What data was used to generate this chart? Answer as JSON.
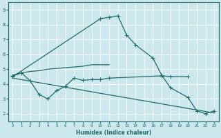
{
  "xlabel": "Humidex (Indice chaleur)",
  "xlim": [
    -0.5,
    23.5
  ],
  "ylim": [
    1.5,
    9.5
  ],
  "xticks": [
    0,
    1,
    2,
    3,
    4,
    5,
    6,
    7,
    8,
    9,
    10,
    11,
    12,
    13,
    14,
    15,
    16,
    17,
    18,
    19,
    20,
    21,
    22,
    23
  ],
  "yticks": [
    2,
    3,
    4,
    5,
    6,
    7,
    8,
    9
  ],
  "bg_color": "#cce8ec",
  "line_color": "#1a6b6b",
  "grid_color": "#ffffff",
  "curve_main": {
    "x": [
      0,
      10,
      11,
      12,
      13,
      14,
      16,
      17,
      18,
      20,
      21,
      22,
      23
    ],
    "y": [
      4.5,
      8.4,
      8.5,
      8.6,
      7.3,
      6.65,
      5.75,
      4.6,
      3.75,
      3.1,
      2.2,
      2.0,
      2.2
    ]
  },
  "curve_upper": {
    "x": [
      0,
      1,
      2,
      3,
      4,
      5,
      6,
      7,
      8,
      9,
      10,
      11
    ],
    "y": [
      4.6,
      4.75,
      4.85,
      4.9,
      5.0,
      5.05,
      5.1,
      5.15,
      5.2,
      5.3,
      5.3,
      5.3
    ]
  },
  "curve_zigzag": {
    "x": [
      0,
      1,
      2,
      3,
      4,
      5,
      6,
      7,
      8,
      9,
      10,
      11,
      17,
      18,
      20
    ],
    "y": [
      4.55,
      4.75,
      4.2,
      3.3,
      3.0,
      3.55,
      3.85,
      4.4,
      4.25,
      4.3,
      4.3,
      4.4,
      4.55,
      4.5,
      4.5
    ]
  },
  "curve_bottom": {
    "x": [
      0,
      23
    ],
    "y": [
      4.4,
      2.05
    ]
  }
}
